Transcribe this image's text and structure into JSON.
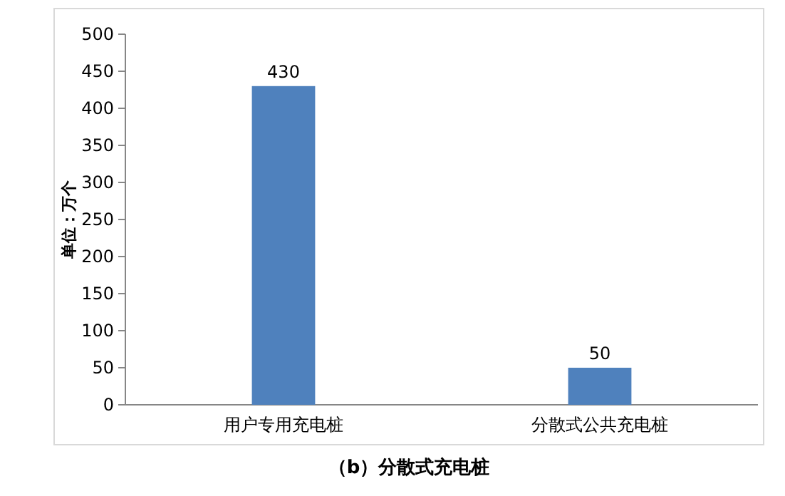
{
  "chart_data": {
    "type": "bar",
    "title": "（b）分散式充电桩",
    "ylabel": "单位：万个",
    "categories": [
      "用户专用充电桩",
      "分散式公共充电桩"
    ],
    "values": [
      430,
      50
    ],
    "color": "#4f81bd",
    "ylim": [
      0,
      500
    ],
    "yticks": [
      0,
      50,
      100,
      150,
      200,
      250,
      300,
      350,
      400,
      450,
      500
    ],
    "grid": false,
    "data_labels": true
  }
}
